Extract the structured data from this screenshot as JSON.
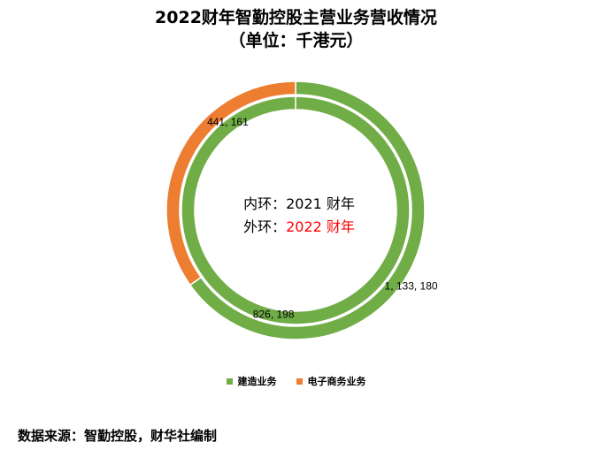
{
  "chart_data": {
    "type": "pie",
    "title": "2022财年智勤控股主营业务营收情况",
    "subtitle": "（单位：千港元）",
    "unit": "千港元",
    "categories": [
      "建造业务",
      "电子商务业务"
    ],
    "colors": [
      "#70AD47",
      "#ED7D31"
    ],
    "series": [
      {
        "name": "2021 财年",
        "ring": "inner",
        "values": [
          1133180,
          0
        ],
        "labels": [
          "1, 133, 180",
          ""
        ]
      },
      {
        "name": "2022 财年",
        "ring": "outer",
        "values": [
          826198,
          441161
        ],
        "labels": [
          "826, 198",
          "441, 161"
        ]
      }
    ],
    "center_text": {
      "line1_prefix": "内环：",
      "line1_value": "2021 财年",
      "line2_prefix": "外环：",
      "line2_value": "2022 财年",
      "line2_value_color": "#FF0000"
    },
    "legend_position": "bottom"
  },
  "source_text": "数据来源：智勤控股，财华社编制"
}
